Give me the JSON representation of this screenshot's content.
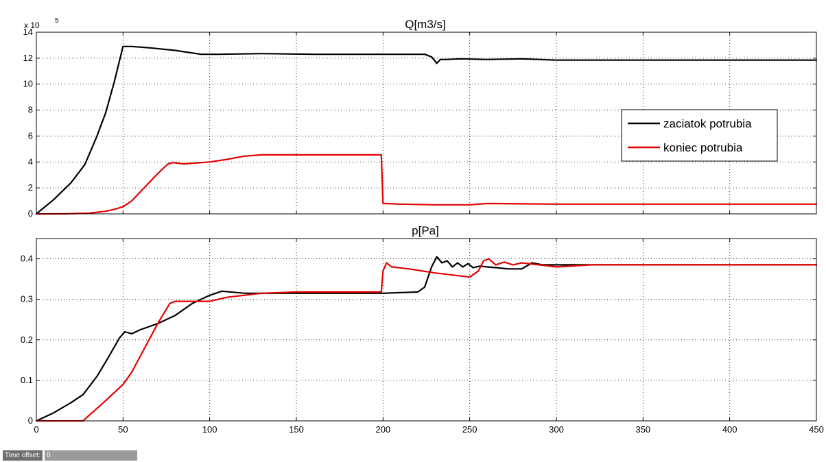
{
  "window": {
    "time_offset_label": "Time offset:",
    "time_offset_value": "0"
  },
  "chart_data": [
    {
      "type": "line",
      "title": "Q[m3/s]",
      "y_exponent_label": "x 10",
      "y_exponent_power": "5",
      "xlim": [
        0,
        450
      ],
      "ylim": [
        0,
        14
      ],
      "xticks": [
        0,
        50,
        100,
        150,
        200,
        250,
        300,
        350,
        400,
        450
      ],
      "yticks": [
        0,
        2,
        4,
        6,
        8,
        10,
        12,
        14
      ],
      "show_xtick_labels": false,
      "grid": true,
      "legend": {
        "placement": "right",
        "entries": [
          "zaciatok potrubia",
          "koniec potrubia"
        ]
      },
      "series": [
        {
          "name": "zaciatok potrubia",
          "color": "#000000",
          "x": [
            0,
            10,
            20,
            28,
            35,
            40,
            45,
            50,
            55,
            65,
            80,
            95,
            105,
            130,
            160,
            200,
            224,
            228,
            231,
            233,
            236,
            245,
            260,
            280,
            300,
            350,
            400,
            450
          ],
          "y": [
            0,
            1.1,
            2.4,
            3.8,
            6.0,
            7.8,
            10.2,
            12.9,
            12.9,
            12.8,
            12.6,
            12.3,
            12.3,
            12.35,
            12.3,
            12.3,
            12.3,
            12.1,
            11.6,
            11.9,
            11.9,
            11.95,
            11.9,
            11.95,
            11.85,
            11.85,
            11.85,
            11.85
          ]
        },
        {
          "name": "koniec potrubia",
          "color": "#e30000",
          "x": [
            0,
            15,
            30,
            40,
            45,
            50,
            55,
            60,
            65,
            70,
            76,
            79,
            85,
            100,
            110,
            120,
            130,
            150,
            180,
            199,
            200,
            201,
            210,
            230,
            250,
            260,
            300,
            350,
            400,
            450
          ],
          "y": [
            0,
            0,
            0.05,
            0.2,
            0.35,
            0.55,
            1.0,
            1.7,
            2.4,
            3.1,
            3.85,
            3.95,
            3.85,
            4.0,
            4.2,
            4.45,
            4.55,
            4.55,
            4.55,
            4.55,
            0.8,
            0.8,
            0.75,
            0.7,
            0.7,
            0.8,
            0.75,
            0.75,
            0.75,
            0.75
          ]
        }
      ]
    },
    {
      "type": "line",
      "title": "p[Pa]",
      "xlim": [
        0,
        450
      ],
      "ylim": [
        0,
        0.45
      ],
      "xticks": [
        0,
        50,
        100,
        150,
        200,
        250,
        300,
        350,
        400,
        450
      ],
      "yticks": [
        0,
        0.1,
        0.2,
        0.3,
        0.4
      ],
      "show_xtick_labels": true,
      "grid": true,
      "series": [
        {
          "name": "zaciatok potrubia",
          "color": "#000000",
          "x": [
            0,
            10,
            20,
            27,
            35,
            42,
            48,
            51,
            55,
            60,
            70,
            80,
            90,
            100,
            107,
            120,
            140,
            160,
            200,
            220,
            224,
            228,
            231,
            234,
            237,
            240,
            243,
            246,
            249,
            252,
            256,
            260,
            266,
            272,
            280,
            286,
            292,
            300,
            330,
            360,
            400,
            450
          ],
          "y": [
            0,
            0.02,
            0.045,
            0.065,
            0.11,
            0.16,
            0.205,
            0.22,
            0.215,
            0.225,
            0.24,
            0.26,
            0.29,
            0.31,
            0.32,
            0.315,
            0.315,
            0.315,
            0.315,
            0.318,
            0.33,
            0.38,
            0.405,
            0.39,
            0.395,
            0.38,
            0.39,
            0.38,
            0.388,
            0.378,
            0.382,
            0.38,
            0.378,
            0.375,
            0.375,
            0.39,
            0.385,
            0.385,
            0.385,
            0.385,
            0.385,
            0.385
          ]
        },
        {
          "name": "koniec potrubia",
          "color": "#e30000",
          "x": [
            0,
            20,
            27,
            30,
            40,
            50,
            55,
            60,
            65,
            70,
            77,
            80,
            90,
            100,
            110,
            130,
            150,
            180,
            199,
            200,
            202,
            205,
            215,
            230,
            240,
            250,
            255,
            258,
            261,
            265,
            270,
            275,
            280,
            290,
            300,
            320,
            350,
            400,
            450
          ],
          "y": [
            0,
            0,
            0,
            0.012,
            0.05,
            0.09,
            0.12,
            0.16,
            0.2,
            0.24,
            0.29,
            0.295,
            0.295,
            0.295,
            0.305,
            0.315,
            0.318,
            0.318,
            0.318,
            0.37,
            0.39,
            0.38,
            0.375,
            0.365,
            0.36,
            0.355,
            0.37,
            0.395,
            0.4,
            0.385,
            0.392,
            0.385,
            0.39,
            0.385,
            0.38,
            0.385,
            0.385,
            0.385,
            0.385
          ]
        }
      ]
    }
  ]
}
